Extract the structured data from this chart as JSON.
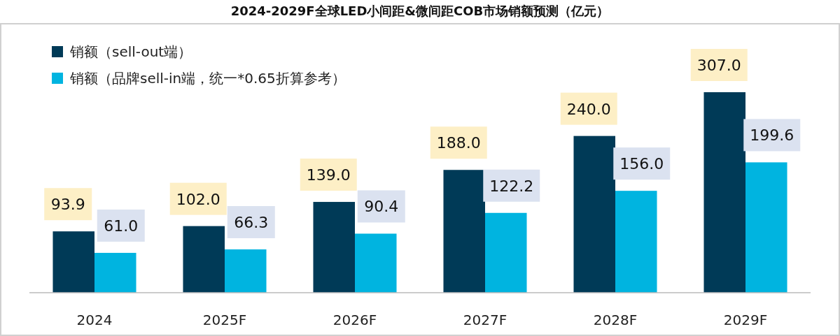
{
  "chart_data": {
    "type": "bar",
    "title": "2024-2029F全球LED小间距&微间距COB市场销额预测（亿元）",
    "categories": [
      "2024",
      "2025F",
      "2026F",
      "2027F",
      "2028F",
      "2029F"
    ],
    "series": [
      {
        "name": "销额（sell-out端）",
        "color": "#003a57",
        "values": [
          93.9,
          102.0,
          139.0,
          188.0,
          240.0,
          307.0
        ],
        "value_labels": [
          "93.9",
          "102.0",
          "139.0",
          "188.0",
          "240.0",
          "307.0"
        ]
      },
      {
        "name": "销额（品牌sell-in端，统一*0.65折算参考）",
        "color": "#00b4e0",
        "values": [
          61.0,
          66.3,
          90.4,
          122.2,
          156.0,
          199.6
        ],
        "value_labels": [
          "61.0",
          "66.3",
          "90.4",
          "122.2",
          "156.0",
          "199.6"
        ]
      }
    ],
    "legend": "top left"
  }
}
